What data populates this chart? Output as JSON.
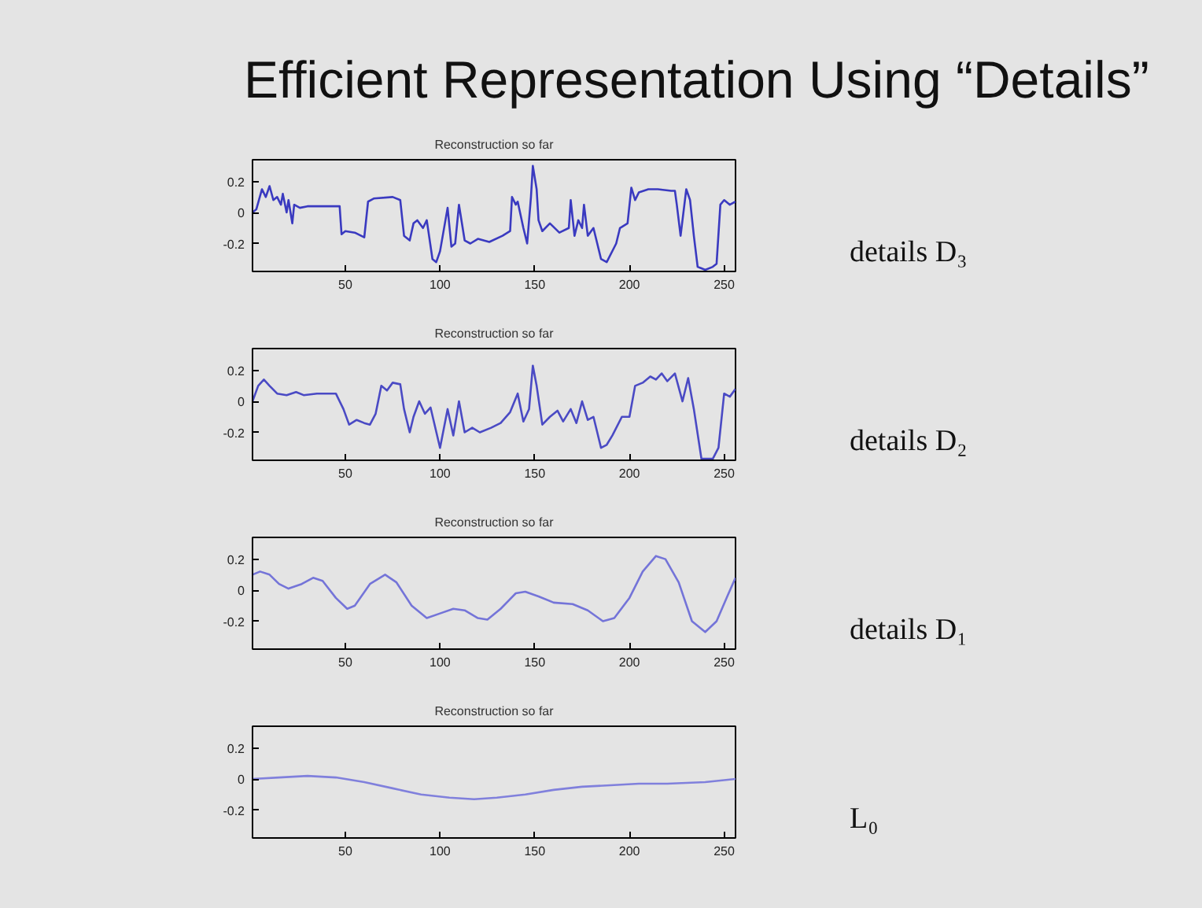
{
  "chart_data": [
    {
      "type": "line",
      "title": "Reconstruction so far",
      "annotations": [
        "Efficient Representation Using “Details”",
        "details D₃"
      ],
      "xlim": [
        1,
        256
      ],
      "ylim": [
        -0.38,
        0.34
      ],
      "xticks": [
        50,
        100,
        150,
        200,
        250
      ],
      "yticks": [
        -0.2,
        0,
        0.2
      ],
      "x": [
        1,
        3,
        6,
        8,
        10,
        12,
        14,
        16,
        17,
        19,
        20,
        22,
        23,
        26,
        30,
        47,
        48,
        50,
        55,
        60,
        62,
        65,
        75,
        79,
        81,
        84,
        86,
        88,
        91,
        93,
        96,
        98,
        100,
        104,
        106,
        108,
        110,
        113,
        116,
        120,
        126,
        133,
        137,
        138,
        140,
        141,
        144,
        146,
        148,
        149,
        151,
        152,
        154,
        158,
        163,
        168,
        169,
        171,
        173,
        175,
        176,
        178,
        181,
        185,
        188,
        193,
        195,
        199,
        201,
        203,
        205,
        210,
        215,
        222,
        224,
        225,
        227,
        230,
        232,
        234,
        236,
        238,
        240,
        244,
        246,
        248,
        250,
        253,
        256
      ],
      "series": [
        {
          "color": "#3a3ac0",
          "values": [
            0.0,
            0.02,
            0.15,
            0.1,
            0.17,
            0.08,
            0.1,
            0.05,
            0.12,
            0.0,
            0.08,
            -0.07,
            0.05,
            0.03,
            0.04,
            0.04,
            -0.14,
            -0.12,
            -0.13,
            -0.16,
            0.07,
            0.09,
            0.1,
            0.08,
            -0.15,
            -0.18,
            -0.07,
            -0.05,
            -0.1,
            -0.05,
            -0.3,
            -0.32,
            -0.25,
            0.03,
            -0.22,
            -0.2,
            0.05,
            -0.18,
            -0.2,
            -0.17,
            -0.19,
            -0.15,
            -0.12,
            0.1,
            0.05,
            0.07,
            -0.1,
            -0.2,
            0.1,
            0.3,
            0.15,
            -0.05,
            -0.12,
            -0.07,
            -0.13,
            -0.1,
            0.08,
            -0.15,
            -0.05,
            -0.1,
            0.05,
            -0.15,
            -0.1,
            -0.3,
            -0.32,
            -0.2,
            -0.1,
            -0.07,
            0.16,
            0.08,
            0.13,
            0.15,
            0.15,
            0.14,
            0.14,
            0.05,
            -0.15,
            0.15,
            0.08,
            -0.15,
            -0.35,
            -0.36,
            -0.37,
            -0.35,
            -0.33,
            0.05,
            0.08,
            0.05,
            0.07
          ]
        }
      ]
    },
    {
      "type": "line",
      "title": "Reconstruction so far",
      "annotations": [
        "details D₂"
      ],
      "xlim": [
        1,
        256
      ],
      "ylim": [
        -0.38,
        0.34
      ],
      "xticks": [
        50,
        100,
        150,
        200,
        250
      ],
      "yticks": [
        -0.2,
        0,
        0.2
      ],
      "x": [
        1,
        4,
        7,
        10,
        14,
        19,
        24,
        28,
        35,
        45,
        49,
        52,
        56,
        60,
        63,
        66,
        69,
        72,
        75,
        79,
        81,
        84,
        86,
        89,
        92,
        95,
        100,
        104,
        107,
        110,
        113,
        117,
        121,
        127,
        132,
        137,
        141,
        144,
        147,
        149,
        151,
        154,
        158,
        162,
        165,
        169,
        172,
        175,
        178,
        181,
        185,
        188,
        191,
        196,
        200,
        203,
        207,
        211,
        214,
        217,
        220,
        224,
        228,
        231,
        234,
        238,
        241,
        244,
        247,
        250,
        253,
        256
      ],
      "series": [
        {
          "color": "#4a4ac4",
          "values": [
            0.0,
            0.1,
            0.14,
            0.1,
            0.05,
            0.04,
            0.06,
            0.04,
            0.05,
            0.05,
            -0.05,
            -0.15,
            -0.12,
            -0.14,
            -0.15,
            -0.08,
            0.1,
            0.07,
            0.12,
            0.11,
            -0.05,
            -0.2,
            -0.1,
            0.0,
            -0.08,
            -0.04,
            -0.3,
            -0.05,
            -0.22,
            0.0,
            -0.2,
            -0.17,
            -0.2,
            -0.17,
            -0.14,
            -0.07,
            0.05,
            -0.13,
            -0.05,
            0.23,
            0.1,
            -0.15,
            -0.1,
            -0.06,
            -0.13,
            -0.05,
            -0.14,
            0.0,
            -0.12,
            -0.1,
            -0.3,
            -0.28,
            -0.22,
            -0.1,
            -0.1,
            0.1,
            0.12,
            0.16,
            0.14,
            0.18,
            0.13,
            0.18,
            0.0,
            0.15,
            -0.05,
            -0.37,
            -0.37,
            -0.37,
            -0.3,
            0.05,
            0.03,
            0.08
          ]
        }
      ]
    },
    {
      "type": "line",
      "title": "Reconstruction so far",
      "annotations": [
        "details D₁"
      ],
      "xlim": [
        1,
        256
      ],
      "ylim": [
        -0.38,
        0.34
      ],
      "xticks": [
        50,
        100,
        150,
        200,
        250
      ],
      "yticks": [
        -0.2,
        0,
        0.2
      ],
      "x": [
        1,
        5,
        10,
        15,
        20,
        27,
        33,
        38,
        45,
        51,
        55,
        63,
        71,
        77,
        85,
        93,
        100,
        107,
        113,
        120,
        125,
        132,
        140,
        145,
        152,
        160,
        170,
        178,
        186,
        192,
        200,
        207,
        214,
        219,
        226,
        233,
        240,
        246,
        252,
        256
      ],
      "series": [
        {
          "color": "#7474d8",
          "values": [
            0.1,
            0.12,
            0.1,
            0.04,
            0.01,
            0.04,
            0.08,
            0.06,
            -0.05,
            -0.12,
            -0.1,
            0.04,
            0.1,
            0.05,
            -0.1,
            -0.18,
            -0.15,
            -0.12,
            -0.13,
            -0.18,
            -0.19,
            -0.12,
            -0.02,
            -0.01,
            -0.04,
            -0.08,
            -0.09,
            -0.13,
            -0.2,
            -0.18,
            -0.05,
            0.12,
            0.22,
            0.2,
            0.05,
            -0.2,
            -0.27,
            -0.2,
            -0.03,
            0.08
          ]
        }
      ]
    },
    {
      "type": "line",
      "title": "Reconstruction so far",
      "annotations": [
        "L₀"
      ],
      "xlim": [
        1,
        256
      ],
      "ylim": [
        -0.38,
        0.34
      ],
      "xticks": [
        50,
        100,
        150,
        200,
        250
      ],
      "yticks": [
        -0.2,
        0,
        0.2
      ],
      "x": [
        1,
        15,
        30,
        45,
        60,
        75,
        90,
        105,
        118,
        130,
        145,
        160,
        175,
        190,
        205,
        220,
        240,
        256
      ],
      "series": [
        {
          "color": "#8080dc",
          "values": [
            0.0,
            0.01,
            0.02,
            0.01,
            -0.02,
            -0.06,
            -0.1,
            -0.12,
            -0.13,
            -0.12,
            -0.1,
            -0.07,
            -0.05,
            -0.04,
            -0.03,
            -0.03,
            -0.02,
            0.0
          ]
        }
      ]
    }
  ]
}
